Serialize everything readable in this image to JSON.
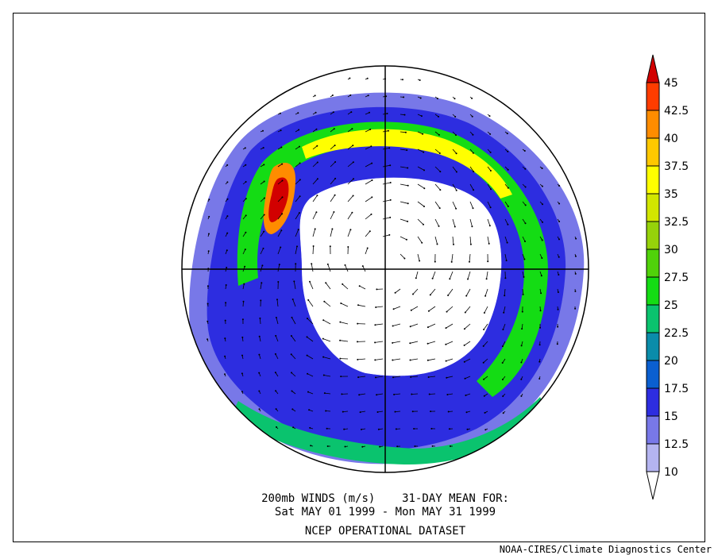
{
  "caption": {
    "line1": "200mb WINDS (m/s)    31-DAY MEAN FOR:",
    "line2": "Sat MAY 01 1999 - Mon MAY 31 1999",
    "line3": "NCEP OPERATIONAL DATASET"
  },
  "credit": "NOAA-CIRES/Climate Diagnostics Center",
  "colorbar": {
    "levels": [
      "10",
      "12.5",
      "15",
      "17.5",
      "20",
      "22.5",
      "25",
      "27.5",
      "30",
      "32.5",
      "35",
      "37.5",
      "40",
      "42.5",
      "45"
    ],
    "colors": [
      "#ffffff",
      "#b4b4f0",
      "#7878e8",
      "#2d2de0",
      "#0a5fd0",
      "#0a8caa",
      "#0ac36e",
      "#14dc14",
      "#50d20a",
      "#96d20a",
      "#d2e600",
      "#ffff00",
      "#ffc800",
      "#ff8c00",
      "#ff3c00",
      "#d20000"
    ]
  },
  "map": {
    "projection": "north-polar-stereographic",
    "variable": "200mb wind speed"
  }
}
